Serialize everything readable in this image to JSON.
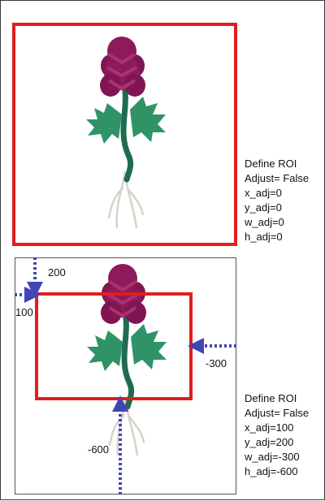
{
  "top_panel": {
    "info_lines": [
      "Define ROI",
      "Adjust= False",
      "x_adj=0",
      "y_adj=0",
      "w_adj=0",
      "h_adj=0"
    ]
  },
  "bottom_panel": {
    "info_lines": [
      "Define ROI",
      "Adjust= False",
      "x_adj=100",
      "y_adj=200",
      "w_adj=-300",
      "h_adj=-600"
    ],
    "arrow_labels": {
      "y_adj": "200",
      "x_adj": "100",
      "w_adj": "-300",
      "h_adj": "-600"
    }
  },
  "colors": {
    "roi": "#e01e1e",
    "arrow": "#3f46b8",
    "flower": "#8e1a5c",
    "leaf": "#2f9368",
    "stem": "#1f6b52"
  }
}
